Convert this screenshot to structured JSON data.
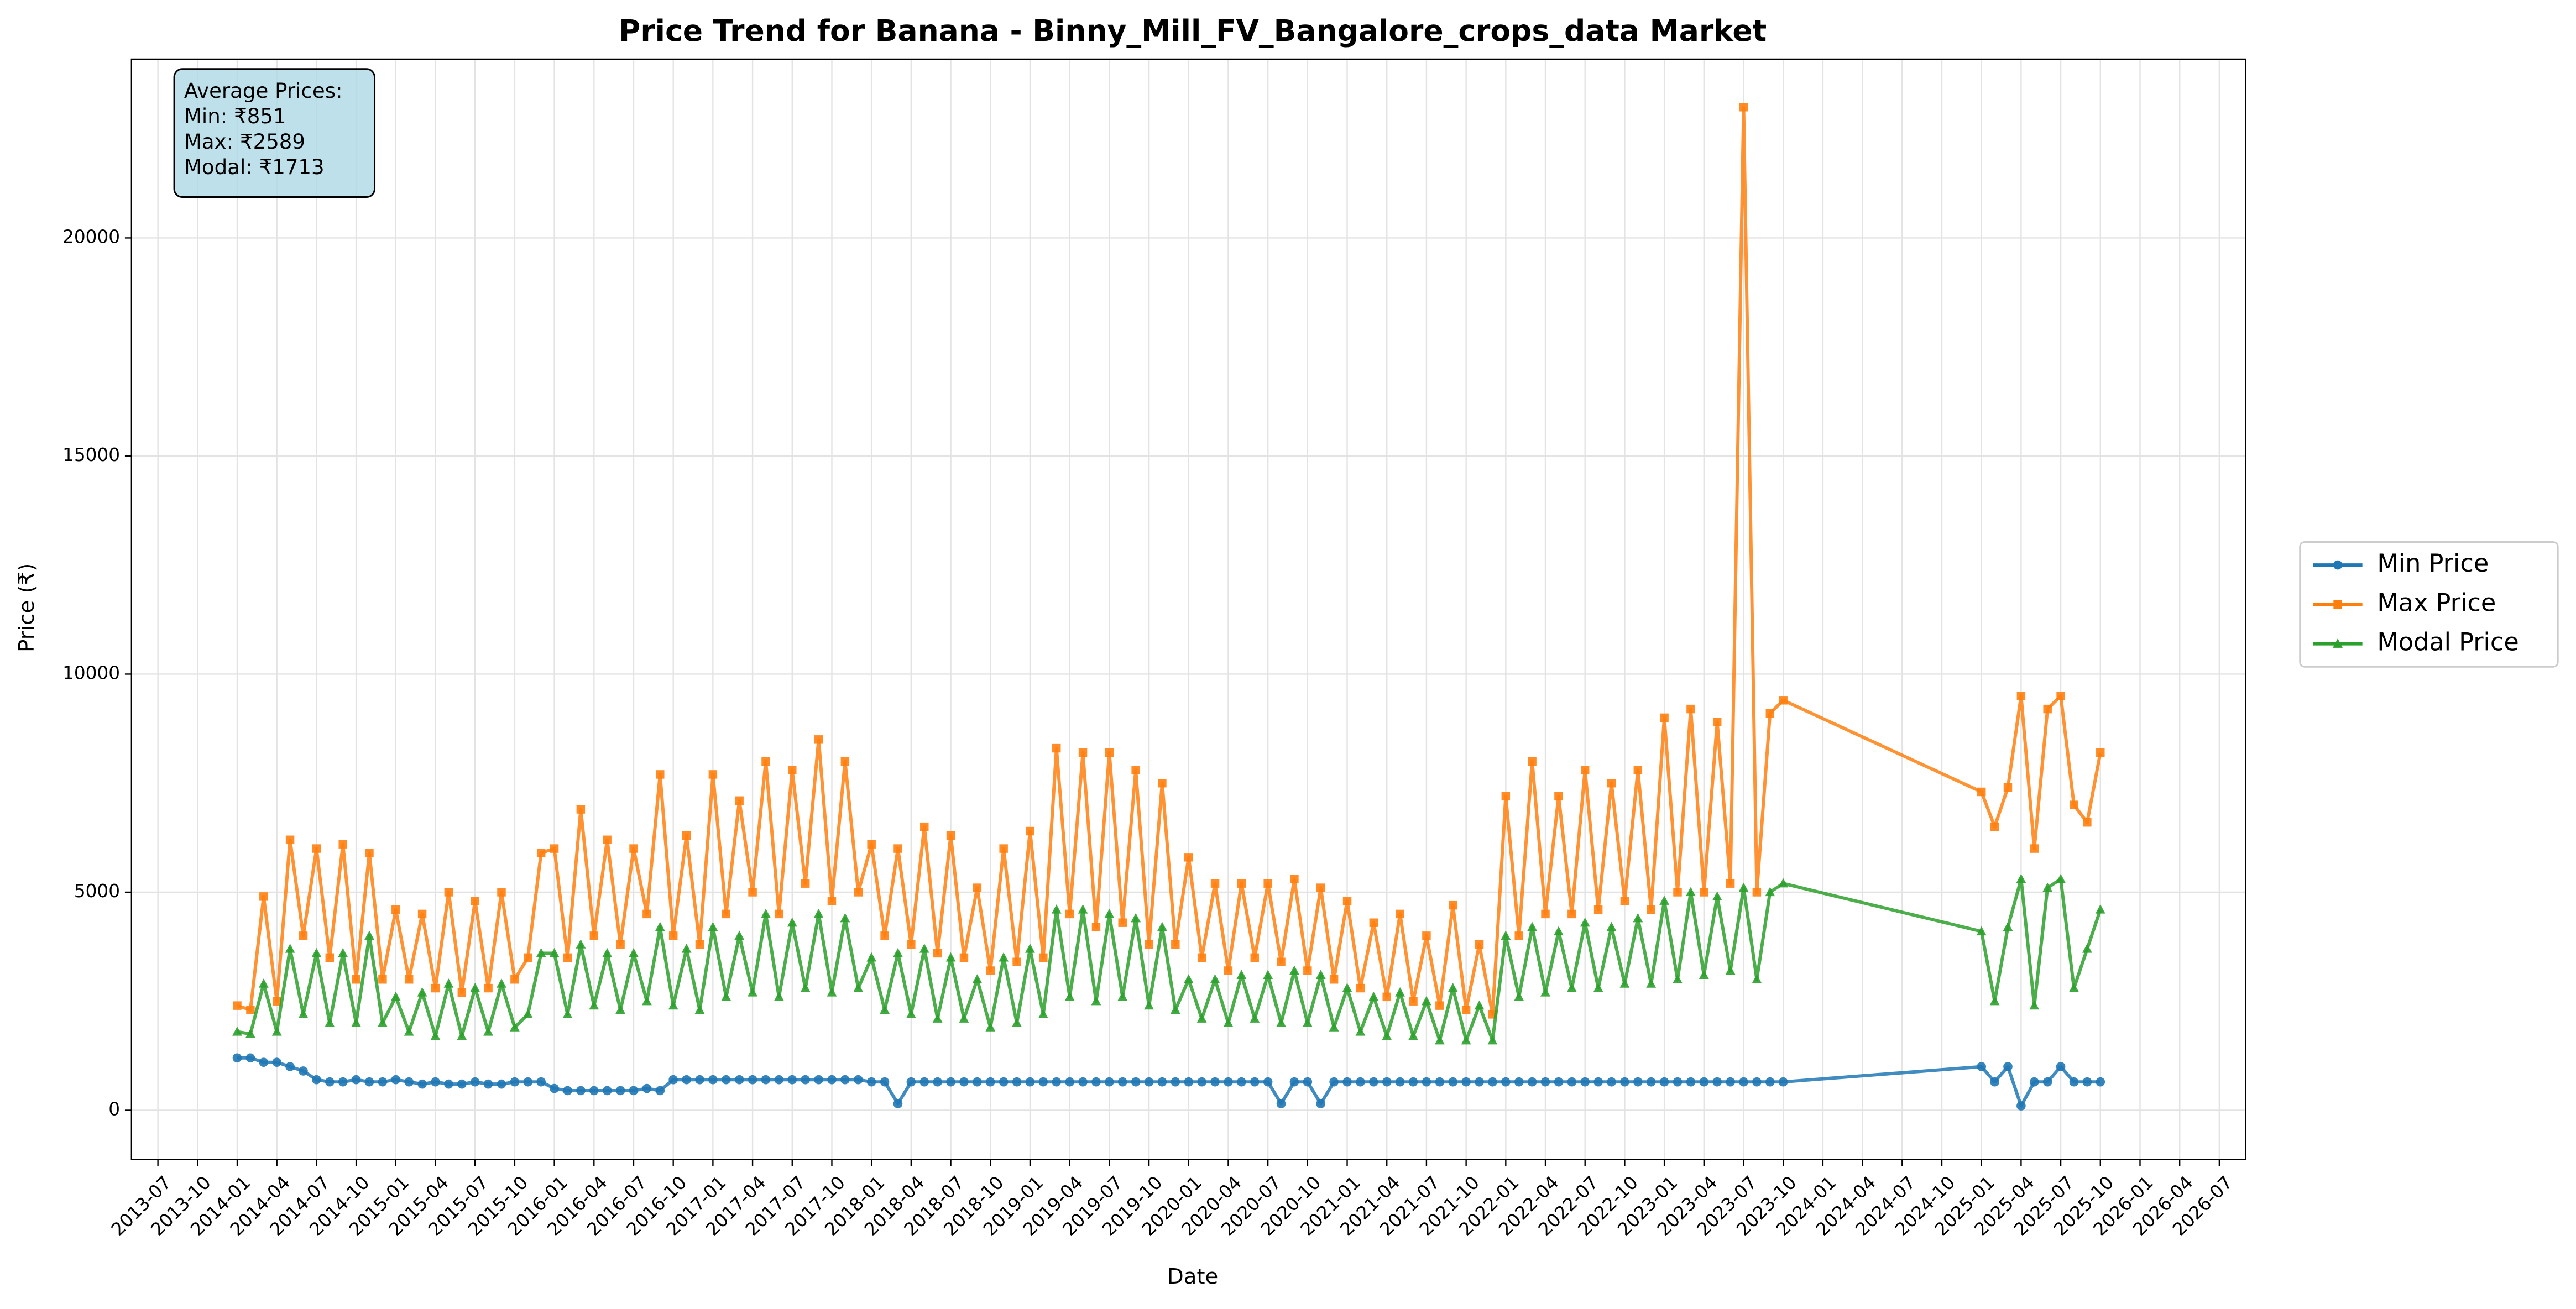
{
  "chart_data": {
    "type": "line",
    "title": "Price Trend for Banana - Binny_Mill_FV_Bangalore_crops_data Market",
    "x_label": "Date",
    "y_label": "Price (₹)",
    "annotation": [
      "Average Prices:",
      "Min: ₹851",
      "Max: ₹2589",
      "Modal: ₹1713"
    ],
    "legend": "center right outside",
    "grid": true,
    "x": [
      "2014-01",
      "2014-02",
      "2014-03",
      "2014-04",
      "2014-05",
      "2014-06",
      "2014-07",
      "2014-08",
      "2014-09",
      "2014-10",
      "2014-11",
      "2014-12",
      "2015-01",
      "2015-02",
      "2015-03",
      "2015-04",
      "2015-05",
      "2015-06",
      "2015-07",
      "2015-08",
      "2015-09",
      "2015-10",
      "2015-11",
      "2015-12",
      "2016-01",
      "2016-02",
      "2016-03",
      "2016-04",
      "2016-05",
      "2016-06",
      "2016-07",
      "2016-08",
      "2016-09",
      "2016-10",
      "2016-11",
      "2016-12",
      "2017-01",
      "2017-02",
      "2017-03",
      "2017-04",
      "2017-05",
      "2017-06",
      "2017-07",
      "2017-08",
      "2017-09",
      "2017-10",
      "2017-11",
      "2017-12",
      "2018-01",
      "2018-02",
      "2018-03",
      "2018-04",
      "2018-05",
      "2018-06",
      "2018-07",
      "2018-08",
      "2018-09",
      "2018-10",
      "2018-11",
      "2018-12",
      "2019-01",
      "2019-02",
      "2019-03",
      "2019-04",
      "2019-05",
      "2019-06",
      "2019-07",
      "2019-08",
      "2019-09",
      "2019-10",
      "2019-11",
      "2019-12",
      "2020-01",
      "2020-02",
      "2020-03",
      "2020-04",
      "2020-05",
      "2020-06",
      "2020-07",
      "2020-08",
      "2020-09",
      "2020-10",
      "2020-11",
      "2020-12",
      "2021-01",
      "2021-02",
      "2021-03",
      "2021-04",
      "2021-05",
      "2021-06",
      "2021-07",
      "2021-08",
      "2021-09",
      "2021-10",
      "2021-11",
      "2021-12",
      "2022-01",
      "2022-02",
      "2022-03",
      "2022-04",
      "2022-05",
      "2022-06",
      "2022-07",
      "2022-08",
      "2022-09",
      "2022-10",
      "2022-11",
      "2022-12",
      "2023-01",
      "2023-02",
      "2023-03",
      "2023-04",
      "2023-05",
      "2023-06",
      "2023-07",
      "2023-08",
      "2023-09",
      "2023-10",
      "2025-01",
      "2025-02",
      "2025-03",
      "2025-04",
      "2025-05",
      "2025-06",
      "2025-07",
      "2025-08",
      "2025-09",
      "2025-10"
    ],
    "series": [
      {
        "name": "Min Price",
        "color": "#1f77b4",
        "marker": "circle",
        "values": [
          1200,
          1200,
          1100,
          1100,
          1000,
          900,
          700,
          650,
          650,
          700,
          650,
          650,
          700,
          650,
          600,
          650,
          600,
          600,
          650,
          600,
          600,
          650,
          650,
          650,
          500,
          450,
          450,
          450,
          450,
          450,
          450,
          500,
          450,
          700,
          700,
          700,
          700,
          700,
          700,
          700,
          700,
          700,
          700,
          700,
          700,
          700,
          700,
          700,
          650,
          650,
          150,
          650,
          650,
          650,
          650,
          650,
          650,
          650,
          650,
          650,
          650,
          650,
          650,
          650,
          650,
          650,
          650,
          650,
          650,
          650,
          650,
          650,
          650,
          650,
          650,
          650,
          650,
          650,
          650,
          150,
          650,
          650,
          150,
          650,
          650,
          650,
          650,
          650,
          650,
          650,
          650,
          650,
          650,
          650,
          650,
          650,
          650,
          650,
          650,
          650,
          650,
          650,
          650,
          650,
          650,
          650,
          650,
          650,
          650,
          650,
          650,
          650,
          650,
          650,
          650,
          650,
          650,
          650,
          1000,
          650,
          1000,
          100,
          650,
          650,
          1000,
          650,
          650,
          650
        ]
      },
      {
        "name": "Max Price",
        "color": "#ff7f0e",
        "marker": "square",
        "values": [
          2400,
          2300,
          4900,
          2500,
          6200,
          4000,
          6000,
          3500,
          6100,
          3000,
          5900,
          3000,
          4600,
          3000,
          4500,
          2800,
          5000,
          2700,
          4800,
          2800,
          5000,
          3000,
          3500,
          5900,
          6000,
          3500,
          6900,
          4000,
          6200,
          3800,
          6000,
          4500,
          7700,
          4000,
          6300,
          3800,
          7700,
          4500,
          7100,
          5000,
          8000,
          4500,
          7800,
          5200,
          8500,
          4800,
          8000,
          5000,
          6100,
          4000,
          6000,
          3800,
          6500,
          3600,
          6300,
          3500,
          5100,
          3200,
          6000,
          3400,
          6400,
          3500,
          8300,
          4500,
          8200,
          4200,
          8200,
          4300,
          7800,
          3800,
          7500,
          3800,
          5800,
          3500,
          5200,
          3200,
          5200,
          3500,
          5200,
          3400,
          5300,
          3200,
          5100,
          3000,
          4800,
          2800,
          4300,
          2600,
          4500,
          2500,
          4000,
          2400,
          4700,
          2300,
          3800,
          2200,
          7200,
          4000,
          8000,
          4500,
          7200,
          4500,
          7800,
          4600,
          7500,
          4800,
          7800,
          4600,
          9000,
          5000,
          9200,
          5000,
          8900,
          5200,
          23000,
          5000,
          9100,
          9400,
          7300,
          6500,
          7400,
          9500,
          6000,
          9200,
          9500,
          7000,
          6600,
          8200
        ]
      },
      {
        "name": "Modal Price",
        "color": "#2ca02c",
        "marker": "triangle",
        "values": [
          1800,
          1750,
          2900,
          1800,
          3700,
          2200,
          3600,
          2000,
          3600,
          2000,
          4000,
          2000,
          2600,
          1800,
          2700,
          1700,
          2900,
          1700,
          2800,
          1800,
          2900,
          1900,
          2200,
          3600,
          3600,
          2200,
          3800,
          2400,
          3600,
          2300,
          3600,
          2500,
          4200,
          2400,
          3700,
          2300,
          4200,
          2600,
          4000,
          2700,
          4500,
          2600,
          4300,
          2800,
          4500,
          2700,
          4400,
          2800,
          3500,
          2300,
          3600,
          2200,
          3700,
          2100,
          3500,
          2100,
          3000,
          1900,
          3500,
          2000,
          3700,
          2200,
          4600,
          2600,
          4600,
          2500,
          4500,
          2600,
          4400,
          2400,
          4200,
          2300,
          3000,
          2100,
          3000,
          2000,
          3100,
          2100,
          3100,
          2000,
          3200,
          2000,
          3100,
          1900,
          2800,
          1800,
          2600,
          1700,
          2700,
          1700,
          2500,
          1600,
          2800,
          1600,
          2400,
          1600,
          4000,
          2600,
          4200,
          2700,
          4100,
          2800,
          4300,
          2800,
          4200,
          2900,
          4400,
          2900,
          4800,
          3000,
          5000,
          3100,
          4900,
          3200,
          5100,
          3000,
          5000,
          5200,
          4100,
          2500,
          4200,
          5300,
          2400,
          5100,
          5300,
          2800,
          3700,
          4600
        ]
      }
    ],
    "xlim": [
      "2013-05",
      "2026-09"
    ],
    "xticks": [
      "2013-07",
      "2013-10",
      "2014-01",
      "2014-04",
      "2014-07",
      "2014-10",
      "2015-01",
      "2015-04",
      "2015-07",
      "2015-10",
      "2016-01",
      "2016-04",
      "2016-07",
      "2016-10",
      "2017-01",
      "2017-04",
      "2017-07",
      "2017-10",
      "2018-01",
      "2018-04",
      "2018-07",
      "2018-10",
      "2019-01",
      "2019-04",
      "2019-07",
      "2019-10",
      "2020-01",
      "2020-04",
      "2020-07",
      "2020-10",
      "2021-01",
      "2021-04",
      "2021-07",
      "2021-10",
      "2022-01",
      "2022-04",
      "2022-07",
      "2022-10",
      "2023-01",
      "2023-04",
      "2023-07",
      "2023-10",
      "2024-01",
      "2024-04",
      "2024-07",
      "2024-10",
      "2025-01",
      "2025-04",
      "2025-07",
      "2025-10",
      "2026-01",
      "2026-04",
      "2026-07"
    ],
    "ylim": [
      -1130,
      24100
    ],
    "yticks": [
      0,
      5000,
      10000,
      15000,
      20000
    ]
  }
}
